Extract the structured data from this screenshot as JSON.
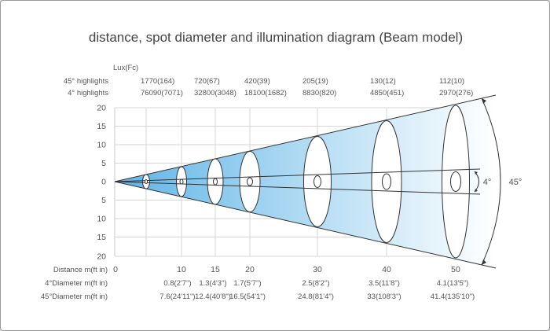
{
  "title": "distance, spot diameter and illumination diagram (Beam model)",
  "lux_label": "Lux(Fc)",
  "rows": {
    "highlights45_label": "45° highlights",
    "highlights4_label": "4° highlights",
    "distance_label": "Distance m(ft in)",
    "diameter4_label": "4°Diameter m(ft in)",
    "diameter45_label": "45°Diameter  m(ft in)"
  },
  "lux_45": [
    "1770(164)",
    "720(67)",
    "420(39)",
    "205(19)",
    "130(12)",
    "112(10)"
  ],
  "lux_4": [
    "76090(7071)",
    "32800(3048)",
    "18100(1682)",
    "8830(820)",
    "4850(451)",
    "2970(276)"
  ],
  "y_ticks": [
    "20",
    "15",
    "10",
    "5",
    "0",
    "5",
    "10",
    "15",
    "20"
  ],
  "distance_ticks": [
    "0",
    "10",
    "15",
    "20",
    "30",
    "40",
    "50"
  ],
  "diameter_4": [
    "0.8(2'7\")",
    "1.3(4'3\")",
    "1.7(5'7\")",
    "2.5(8'2\")",
    "3.5(11'8\")",
    "4.1(13'5\")"
  ],
  "diameter_45": [
    "7.6(24'11\")",
    "12.4(40'8\")",
    "16.5(54'1\")",
    "24.8(81'4\")",
    "33(108'3\")",
    "41.4(135'10\")"
  ],
  "angles": {
    "narrow": "4°",
    "wide": "45°"
  },
  "colors": {
    "beam_light": "#ffffff",
    "beam_dark": "#9fd0ee",
    "lines": "#333333",
    "grid": "#cfcfcf"
  }
}
